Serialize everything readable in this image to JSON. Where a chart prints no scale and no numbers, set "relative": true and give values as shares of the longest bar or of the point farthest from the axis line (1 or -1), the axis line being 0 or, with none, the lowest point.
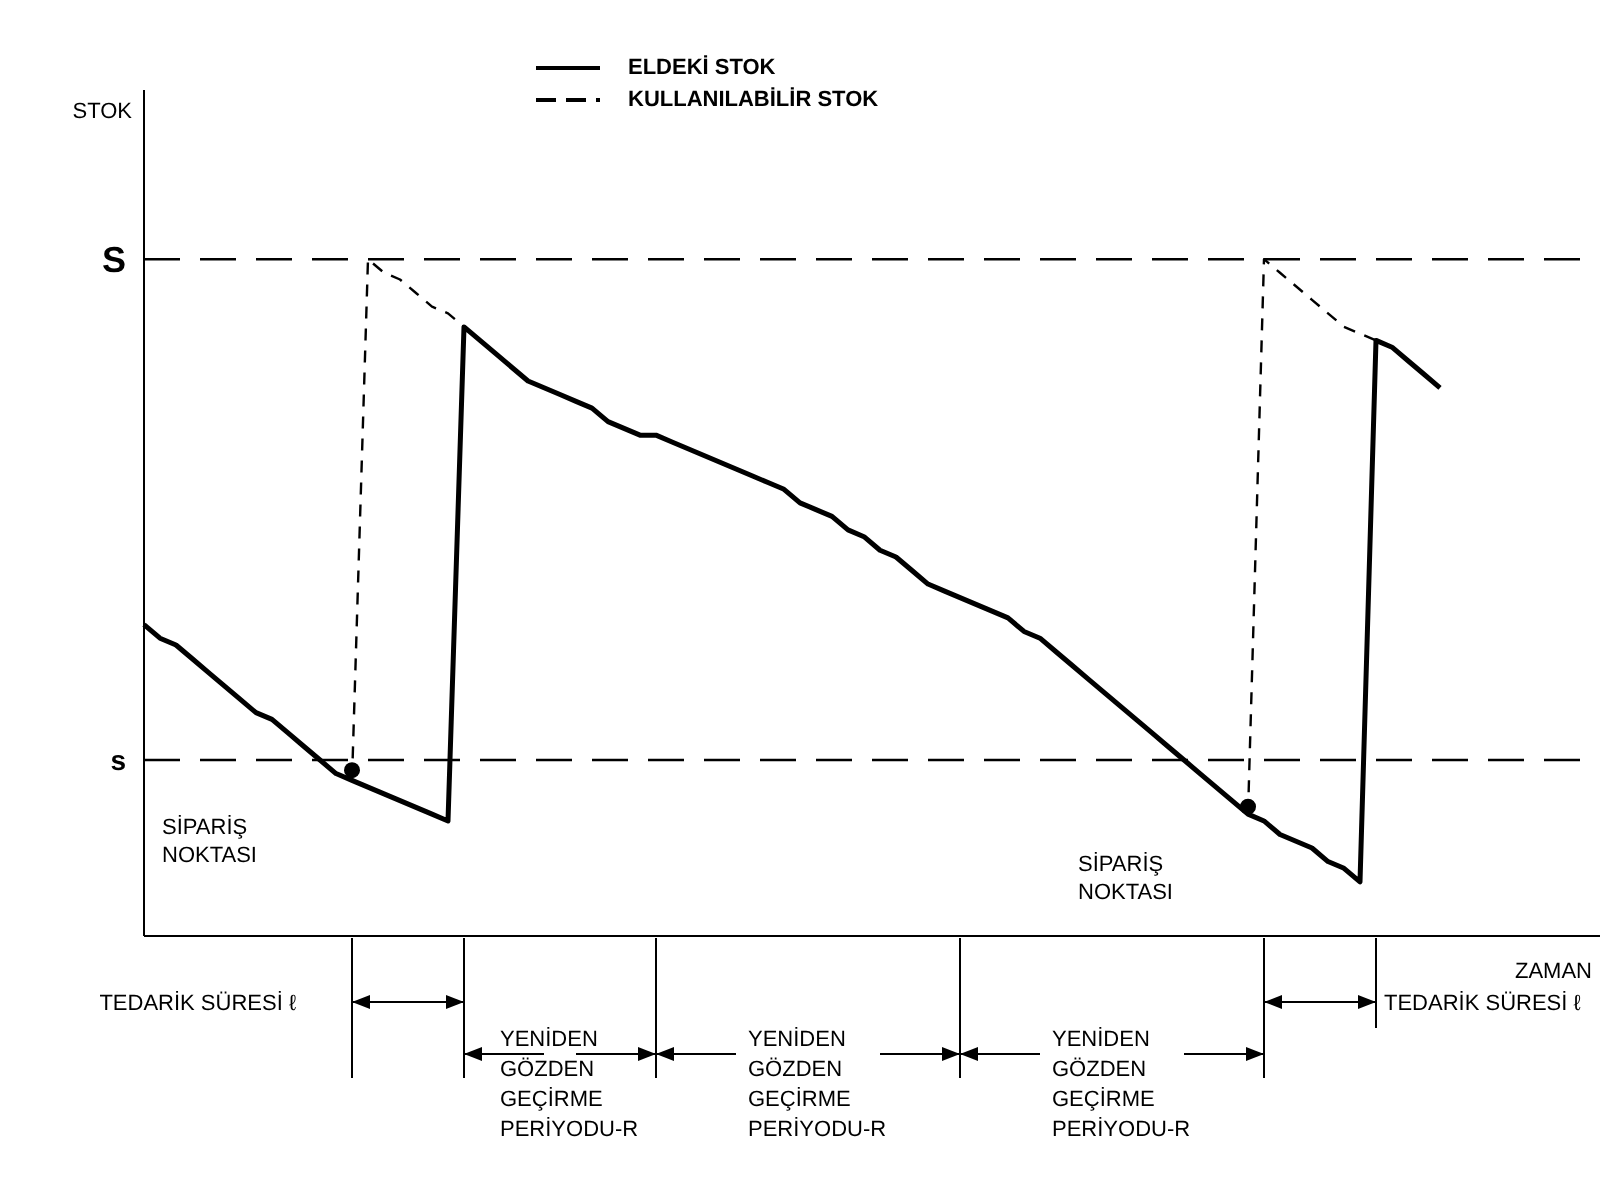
{
  "chart_data": {
    "type": "line",
    "relative": true,
    "xlabel": "ZAMAN",
    "legend": "top",
    "categories": [
      null,
      null,
      null,
      null,
      null,
      null,
      null,
      null,
      null,
      null,
      null,
      null,
      null,
      null,
      null,
      null,
      null,
      null,
      null,
      null,
      null,
      null,
      null,
      null,
      null,
      null,
      null,
      null,
      null,
      null,
      null,
      null,
      null,
      null,
      null,
      null,
      null,
      null,
      null,
      null,
      null,
      null,
      null,
      null,
      null,
      null,
      null,
      null,
      null,
      null,
      null,
      null,
      null,
      null,
      null,
      null,
      null,
      null,
      null,
      null,
      null,
      null,
      null,
      null,
      null,
      null,
      null,
      null,
      null,
      null,
      null,
      null,
      null,
      null,
      null,
      null,
      null,
      null,
      null,
      null,
      null,
      null
    ],
    "series": [
      {
        "name": "ELDEKİ STOK",
        "color": "#000000",
        "line_style": "solid",
        "values": [
          0.46,
          0.44,
          0.43,
          0.41,
          0.39,
          0.37,
          0.35,
          0.33,
          0.32,
          0.3,
          0.28,
          0.26,
          0.24,
          0.23,
          0.22,
          0.21,
          0.2,
          0.19,
          0.18,
          0.17,
          0.9,
          0.88,
          0.86,
          0.84,
          0.82,
          0.81,
          0.8,
          0.79,
          0.78,
          0.76,
          0.75,
          0.74,
          0.74,
          0.73,
          0.72,
          0.71,
          0.7,
          0.69,
          0.68,
          0.67,
          0.66,
          0.64,
          0.63,
          0.62,
          0.6,
          0.59,
          0.57,
          0.56,
          0.54,
          0.52,
          0.51,
          0.5,
          0.49,
          0.48,
          0.47,
          0.45,
          0.44,
          0.42,
          0.4,
          0.38,
          0.36,
          0.34,
          0.32,
          0.3,
          0.28,
          0.26,
          0.24,
          0.22,
          0.2,
          0.18,
          0.17,
          0.15,
          0.14,
          0.13,
          0.11,
          0.1,
          0.08,
          0.88,
          0.87,
          0.85,
          0.83,
          0.81
        ]
      },
      {
        "name": "KULLANILABİLİR STOK",
        "color": "#000000",
        "line_style": "dashed",
        "values": [
          null,
          null,
          null,
          null,
          null,
          null,
          null,
          null,
          null,
          null,
          null,
          null,
          null,
          0.23,
          1,
          0.98,
          0.97,
          0.95,
          0.93,
          0.92,
          0.9,
          null,
          null,
          null,
          null,
          null,
          null,
          null,
          null,
          null,
          null,
          null,
          null,
          null,
          null,
          null,
          null,
          null,
          null,
          null,
          null,
          null,
          null,
          null,
          null,
          null,
          null,
          null,
          null,
          null,
          null,
          null,
          null,
          null,
          null,
          null,
          null,
          null,
          null,
          null,
          null,
          null,
          null,
          null,
          null,
          null,
          null,
          null,
          null,
          0.18,
          1,
          0.98,
          0.96,
          0.94,
          0.92,
          0.9,
          0.89,
          0.88,
          null,
          null,
          null,
          null
        ]
      }
    ],
    "ref_lines": [
      {
        "axis": "y",
        "value": 1,
        "label": "S",
        "color": "#000000",
        "line_style": "dashed"
      },
      {
        "axis": "y",
        "value": 0.26,
        "label": "s",
        "color": "#000000",
        "line_style": "dashed"
      }
    ],
    "annotations": [
      "SİPARİŞ NOKTASI",
      "SİPARİŞ NOKTASI",
      "TEDARİK SÜRESİ ℓ",
      "YENİDEN GÖZDEN GEÇİRME PERİYODU-R",
      "YENİDEN GÖZDEN GEÇİRME PERİYODU-R",
      "YENİDEN GÖZDEN GEÇİRME PERİYODU-R",
      "TEDARİK SÜRESİ ℓ",
      "STOK"
    ]
  }
}
